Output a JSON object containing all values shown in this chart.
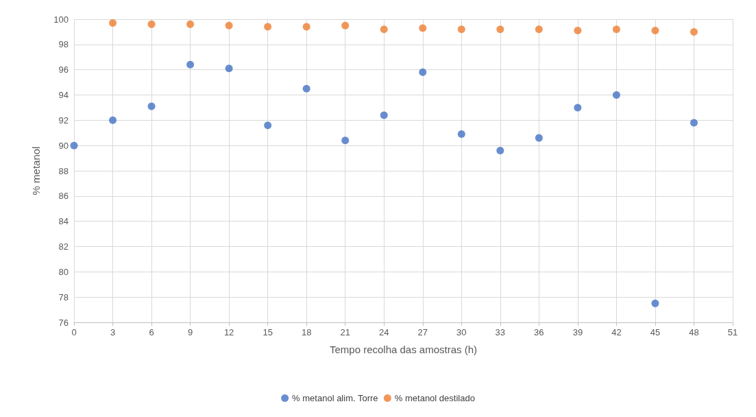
{
  "chart_data": {
    "type": "scatter",
    "xlabel": "Tempo recolha das amostras (h)",
    "ylabel": "% metanol",
    "x": [
      0,
      3,
      6,
      9,
      12,
      15,
      18,
      21,
      24,
      27,
      30,
      33,
      36,
      39,
      42,
      45,
      48
    ],
    "series": [
      {
        "name": "% metanol alim. Torre",
        "color": "#4472c4",
        "values": [
          90.0,
          92.0,
          93.1,
          96.4,
          96.1,
          91.6,
          94.5,
          90.4,
          92.4,
          95.8,
          90.9,
          89.6,
          90.6,
          93.0,
          94.0,
          77.5,
          91.8
        ]
      },
      {
        "name": "% metanol destilado",
        "color": "#ed7d31",
        "x": [
          3,
          6,
          9,
          12,
          15,
          18,
          21,
          24,
          27,
          30,
          33,
          36,
          39,
          42,
          45,
          48
        ],
        "values": [
          99.7,
          99.6,
          99.6,
          99.5,
          99.4,
          99.4,
          99.5,
          99.2,
          99.3,
          99.2,
          99.2,
          99.2,
          99.1,
          99.2,
          99.1,
          99.0
        ]
      }
    ],
    "xlim": [
      0,
      51
    ],
    "xticks": [
      0,
      3,
      6,
      9,
      12,
      15,
      18,
      21,
      24,
      27,
      30,
      33,
      36,
      39,
      42,
      45,
      48,
      51
    ],
    "ylim": [
      76,
      100
    ],
    "yticks": [
      76,
      78,
      80,
      82,
      84,
      86,
      88,
      90,
      92,
      94,
      96,
      98,
      100
    ],
    "grid": true,
    "legend": "bottom",
    "marker": "circle"
  }
}
